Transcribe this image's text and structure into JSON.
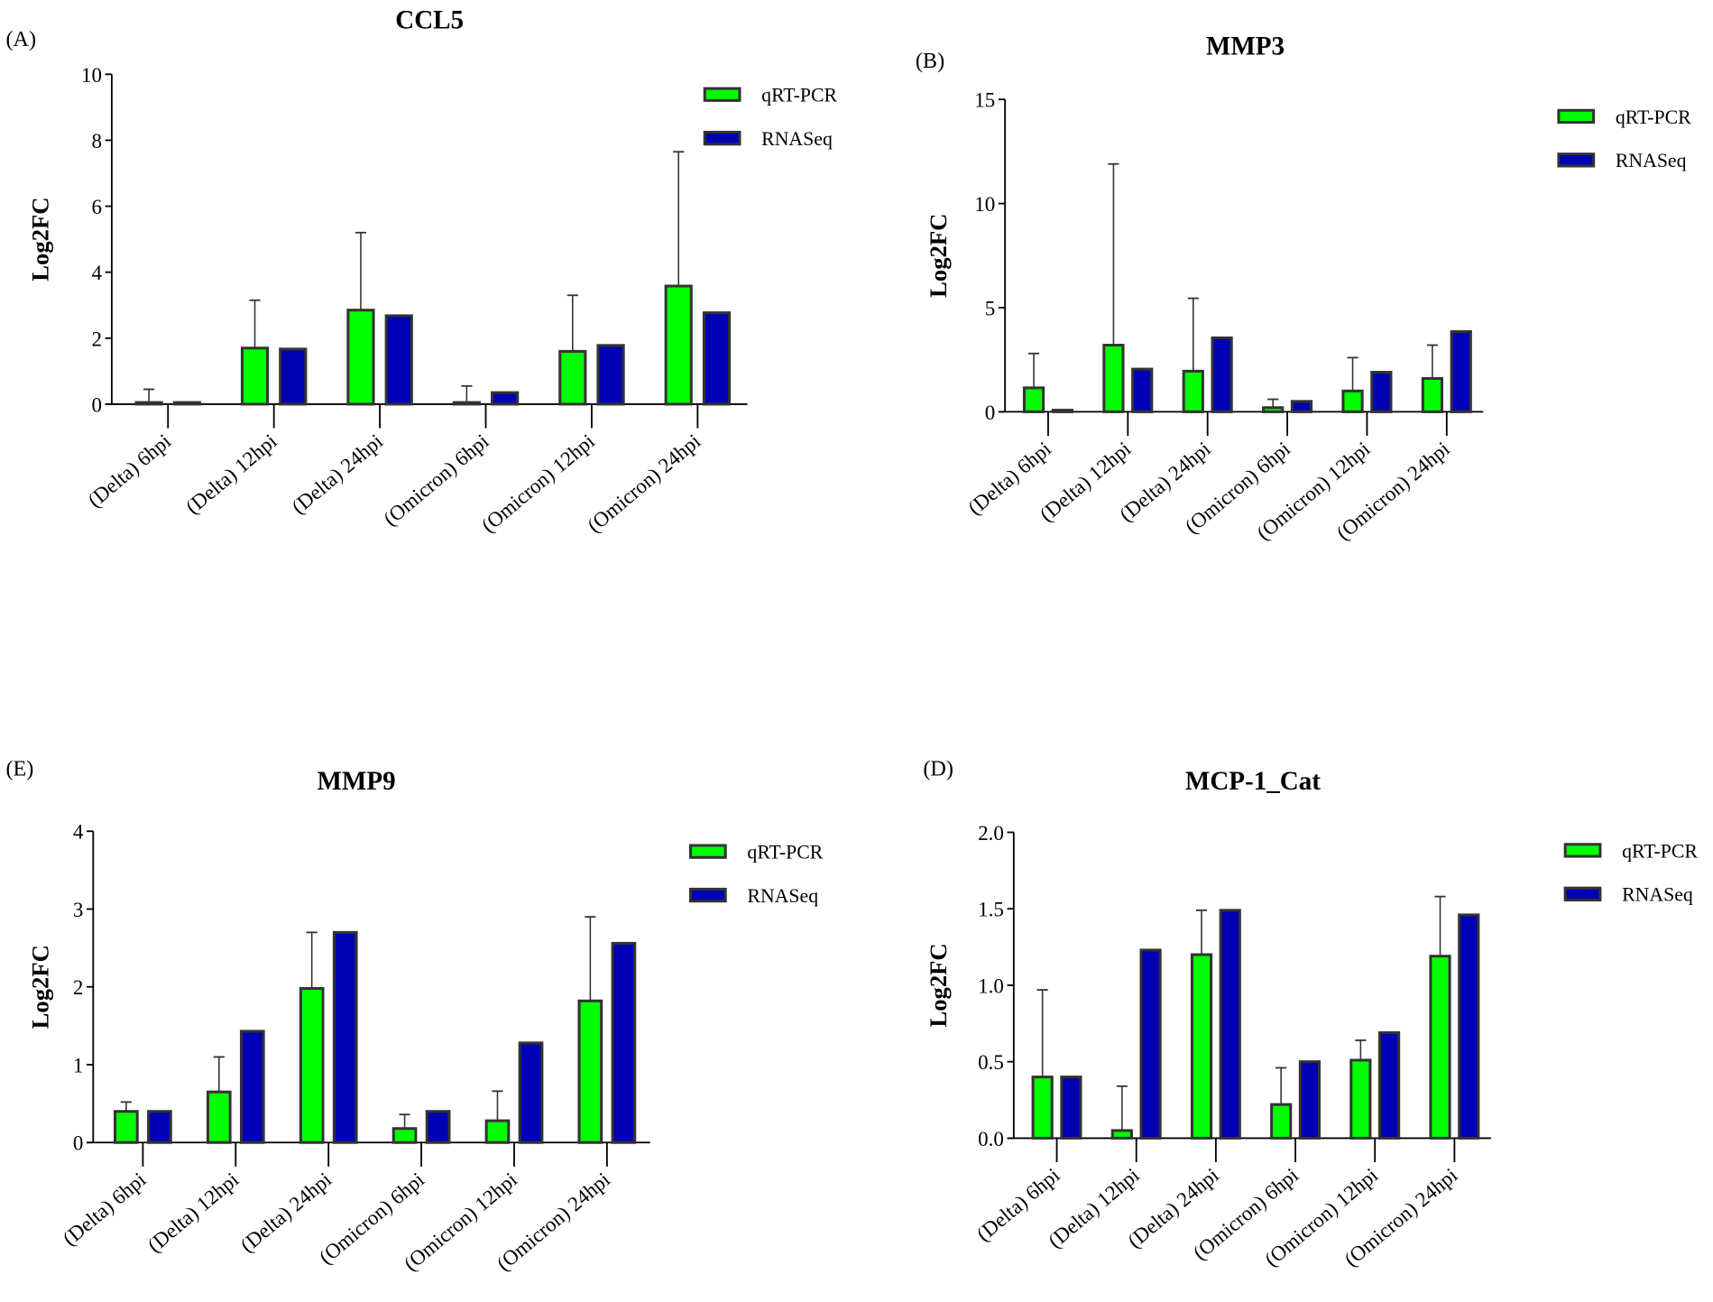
{
  "colors": {
    "qrt": "#00ff00",
    "rna": "#0000b4",
    "stroke": "#333333"
  },
  "chart_data": [
    {
      "panel": "(A)",
      "type": "bar",
      "title": "CCL5",
      "ylabel": "Log2FC",
      "xlabel": "",
      "ylim": [
        0,
        10
      ],
      "yticks": [
        0,
        2,
        4,
        6,
        8,
        10
      ],
      "categories": [
        "(Delta) 6hpi",
        "(Delta) 12hpi",
        "(Delta) 24hpi",
        "(Omicron) 6hpi",
        "(Omicron) 12hpi",
        "(Omicron) 24hpi"
      ],
      "legend": "top-right",
      "series": [
        {
          "name": "qRT-PCR",
          "values": [
            0,
            1.7,
            2.85,
            0,
            1.6,
            3.58
          ],
          "error_upper": [
            0.45,
            3.15,
            5.2,
            0.55,
            3.3,
            7.65
          ]
        },
        {
          "name": "RNASeq",
          "values": [
            0.02,
            1.67,
            2.68,
            0.35,
            1.78,
            2.77
          ]
        }
      ]
    },
    {
      "panel": "(B)",
      "type": "bar",
      "title": "MMP3",
      "ylabel": "Log2FC",
      "xlabel": "",
      "ylim": [
        0,
        15
      ],
      "yticks": [
        0,
        5,
        10,
        15
      ],
      "categories": [
        "(Delta) 6hpi",
        "(Delta) 12hpi",
        "(Delta) 24hpi",
        "(Omicron) 6hpi",
        "(Omicron) 12hpi",
        "(Omicron) 24hpi"
      ],
      "legend": "top-right",
      "series": [
        {
          "name": "qRT-PCR",
          "values": [
            1.15,
            3.2,
            1.95,
            0.2,
            1.0,
            1.6
          ],
          "error_upper": [
            2.8,
            11.9,
            5.45,
            0.6,
            2.6,
            3.2
          ]
        },
        {
          "name": "RNASeq",
          "values": [
            0,
            2.05,
            3.55,
            0.5,
            1.9,
            3.85
          ]
        }
      ]
    },
    {
      "panel": "(E)",
      "type": "bar",
      "title": "MMP9",
      "ylabel": "Log2FC",
      "xlabel": "",
      "ylim": [
        0,
        4
      ],
      "yticks": [
        0,
        1,
        2,
        3,
        4
      ],
      "categories": [
        "(Delta) 6hpi",
        "(Delta) 12hpi",
        "(Delta) 24hpi",
        "(Omicron) 6hpi",
        "(Omicron) 12hpi",
        "(Omicron) 24hpi"
      ],
      "legend": "top-right",
      "series": [
        {
          "name": "qRT-PCR",
          "values": [
            0.4,
            0.65,
            1.98,
            0.18,
            0.28,
            1.82
          ],
          "error_upper": [
            0.52,
            1.1,
            2.7,
            0.36,
            0.66,
            2.9
          ]
        },
        {
          "name": "RNASeq",
          "values": [
            0.4,
            1.43,
            2.7,
            0.4,
            1.28,
            2.56
          ]
        }
      ]
    },
    {
      "panel": "(D)",
      "type": "bar",
      "title": "MCP-1_Cat",
      "ylabel": "Log2FC",
      "xlabel": "",
      "ylim": [
        0,
        2
      ],
      "yticks": [
        "0.0",
        "0.5",
        "1.0",
        "1.5",
        "2.0"
      ],
      "categories": [
        "(Delta) 6hpi",
        "(Delta) 12hpi",
        "(Delta) 24hpi",
        "(Omicron) 6hpi",
        "(Omicron) 12hpi",
        "(Omicron) 24hpi"
      ],
      "legend": "top-right",
      "series": [
        {
          "name": "qRT-PCR",
          "values": [
            0.4,
            0.05,
            1.2,
            0.22,
            0.51,
            1.19
          ],
          "error_upper": [
            0.97,
            0.34,
            1.49,
            0.46,
            0.64,
            1.58
          ]
        },
        {
          "name": "RNASeq",
          "values": [
            0.4,
            1.23,
            1.49,
            0.5,
            0.69,
            1.46
          ]
        }
      ]
    }
  ]
}
